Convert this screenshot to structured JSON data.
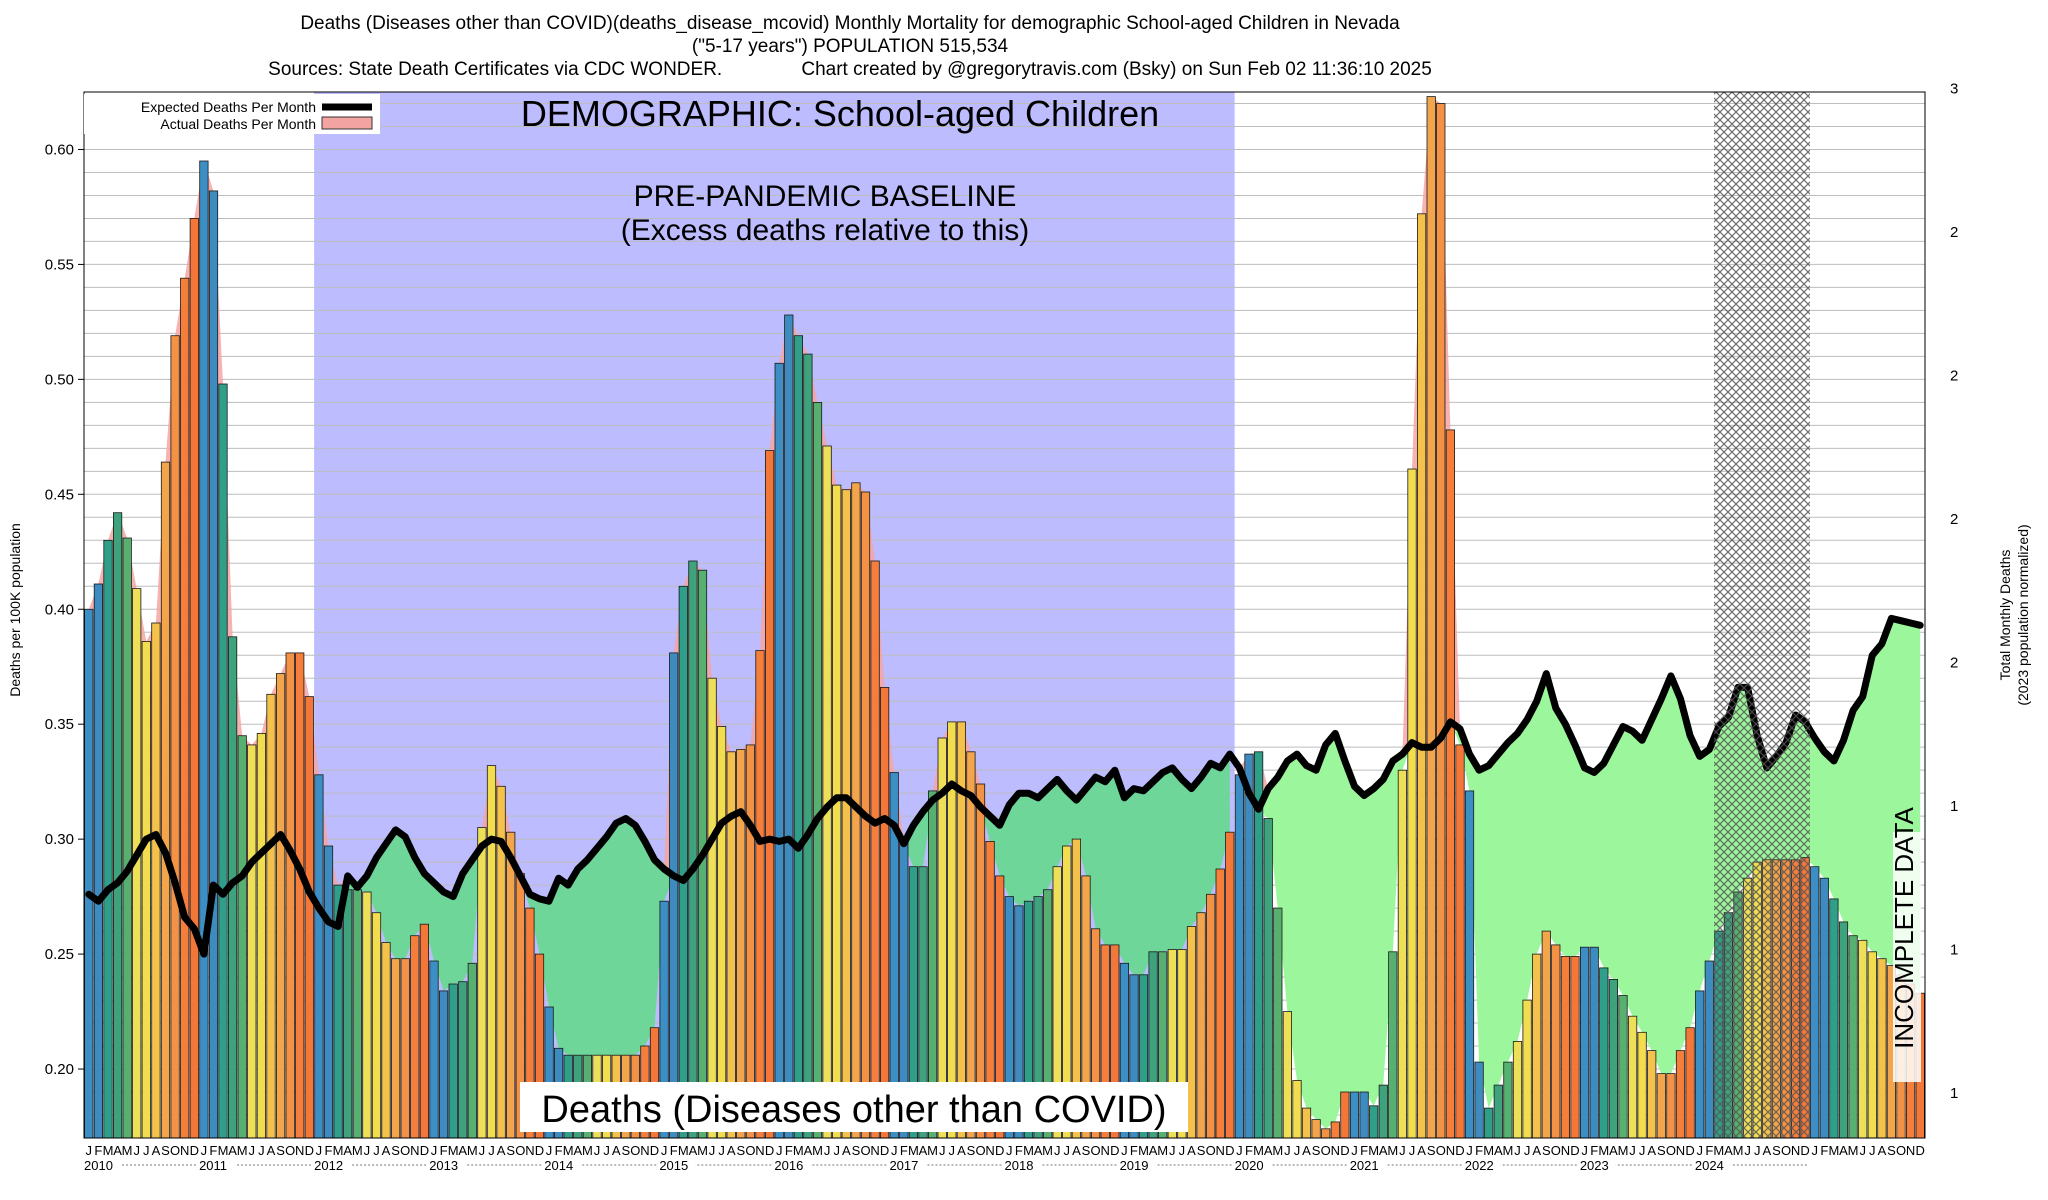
{
  "header": {
    "title_line1": "Deaths (Diseases other than COVID)(deaths_disease_mcovid) Monthly Mortality for demographic School-aged Children in Nevada",
    "title_line2": "(\"5-17 years\") POPULATION 515,534",
    "title_line3": "Sources: State Death Certificates via CDC WONDER.               Chart created by @gregorytravis.com (Bsky) on Sun Feb 02 11:36:10 2025"
  },
  "chart_data": {
    "type": "bar",
    "xlabel": "",
    "ylabel": "Deaths per 100K population",
    "ylabel_right": "Total Monthly Deaths",
    "ylabel_right_sub": "(2023 population normalized)",
    "ylim": [
      0.17,
      0.625
    ],
    "y_ticks": [
      0.2,
      0.25,
      0.3,
      0.35,
      0.4,
      0.45,
      0.5,
      0.55,
      0.6
    ],
    "y_tick_labels": [
      "0.20",
      "0.25",
      "0.30",
      "0.35",
      "0.40",
      "0.45",
      "0.50",
      "0.55",
      "0.60"
    ],
    "right_tick_labels": [
      "1",
      "1",
      "1",
      "2",
      "2",
      "2",
      "2",
      "3",
      "3"
    ],
    "month_letters": [
      "J",
      "F",
      "M",
      "A",
      "M",
      "J",
      "J",
      "A",
      "S",
      "O",
      "N",
      "D"
    ],
    "years": [
      "2010",
      "2011",
      "2012",
      "2013",
      "2014",
      "2015",
      "2016",
      "2017",
      "2018",
      "2019",
      "2020",
      "2021",
      "2022",
      "2023",
      "2024"
    ],
    "grid": "horizontal",
    "legend_position": "top-left",
    "legend": [
      {
        "name": "Expected Deaths Per Month",
        "color": "#000000"
      },
      {
        "name": "Actual Deaths Per Month",
        "color": "#f4a3a3"
      }
    ],
    "annotations": {
      "demographic": "DEMOGRAPHIC: School-aged Children",
      "baseline_line1": "PRE-PANDEMIC BASELINE",
      "baseline_line2": "(Excess deaths relative to this)",
      "bottom_label": "Deaths (Diseases other than COVID)",
      "incomplete": "INCOMPLETE DATA"
    },
    "baseline_period": {
      "start": "2012-01",
      "end": "2019-12"
    },
    "incomplete_period": {
      "start": "2024-03",
      "end": "2024-12"
    },
    "series": [
      {
        "name": "Actual Deaths Per Month",
        "start": "2010-01",
        "values": [
          0.4,
          0.411,
          0.43,
          0.442,
          0.431,
          0.409,
          0.386,
          0.394,
          0.464,
          0.519,
          0.544,
          0.57,
          0.595,
          0.582,
          0.498,
          0.388,
          0.345,
          0.341,
          0.346,
          0.363,
          0.372,
          0.381,
          0.381,
          0.362,
          0.328,
          0.297,
          0.28,
          0.278,
          0.278,
          0.277,
          0.268,
          0.255,
          0.248,
          0.248,
          0.258,
          0.263,
          0.247,
          0.234,
          0.237,
          0.238,
          0.246,
          0.305,
          0.332,
          0.323,
          0.303,
          0.285,
          0.27,
          0.25,
          0.227,
          0.209,
          0.206,
          0.206,
          0.206,
          0.206,
          0.206,
          0.206,
          0.206,
          0.206,
          0.21,
          0.218,
          0.273,
          0.381,
          0.41,
          0.421,
          0.417,
          0.37,
          0.349,
          0.338,
          0.339,
          0.341,
          0.382,
          0.469,
          0.507,
          0.528,
          0.519,
          0.511,
          0.49,
          0.471,
          0.454,
          0.452,
          0.455,
          0.451,
          0.421,
          0.366,
          0.329,
          0.3,
          0.288,
          0.288,
          0.321,
          0.344,
          0.351,
          0.351,
          0.338,
          0.324,
          0.299,
          0.284,
          0.275,
          0.271,
          0.273,
          0.275,
          0.278,
          0.288,
          0.297,
          0.3,
          0.284,
          0.261,
          0.254,
          0.254,
          0.246,
          0.241,
          0.241,
          0.251,
          0.251,
          0.252,
          0.252,
          0.262,
          0.268,
          0.276,
          0.287,
          0.303,
          0.328,
          0.337,
          0.338,
          0.309,
          0.27,
          0.225,
          0.195,
          0.183,
          0.178,
          0.174,
          0.177,
          0.19,
          0.19,
          0.19,
          0.184,
          0.193,
          0.251,
          0.33,
          0.461,
          0.572,
          0.623,
          0.62,
          0.478,
          0.341,
          0.321,
          0.203,
          0.183,
          0.193,
          0.203,
          0.212,
          0.23,
          0.25,
          0.26,
          0.254,
          0.249,
          0.249,
          0.253,
          0.253,
          0.244,
          0.239,
          0.232,
          0.223,
          0.216,
          0.208,
          0.198,
          0.198,
          0.208,
          0.218,
          0.234,
          0.247,
          0.26,
          0.268,
          0.277,
          0.283,
          0.29,
          0.291,
          0.291,
          0.291,
          0.291,
          0.292,
          0.288,
          0.283,
          0.274,
          0.264,
          0.258,
          0.256,
          0.251,
          0.248,
          0.245,
          0.241,
          0.237,
          0.233
        ]
      },
      {
        "name": "Expected Deaths Per Month",
        "start": "2010-01",
        "values": [
          0.276,
          0.273,
          0.278,
          0.281,
          0.286,
          0.293,
          0.3,
          0.302,
          0.294,
          0.281,
          0.266,
          0.261,
          0.25,
          0.28,
          0.276,
          0.281,
          0.284,
          0.29,
          0.294,
          0.298,
          0.302,
          0.295,
          0.287,
          0.277,
          0.27,
          0.264,
          0.262,
          0.284,
          0.279,
          0.284,
          0.292,
          0.298,
          0.304,
          0.301,
          0.292,
          0.285,
          0.281,
          0.277,
          0.275,
          0.285,
          0.291,
          0.297,
          0.3,
          0.299,
          0.292,
          0.284,
          0.276,
          0.274,
          0.273,
          0.283,
          0.28,
          0.287,
          0.291,
          0.296,
          0.301,
          0.307,
          0.309,
          0.306,
          0.299,
          0.291,
          0.287,
          0.284,
          0.282,
          0.287,
          0.293,
          0.3,
          0.307,
          0.31,
          0.312,
          0.306,
          0.299,
          0.3,
          0.299,
          0.3,
          0.296,
          0.302,
          0.309,
          0.314,
          0.318,
          0.318,
          0.314,
          0.31,
          0.307,
          0.309,
          0.306,
          0.298,
          0.306,
          0.312,
          0.317,
          0.32,
          0.324,
          0.321,
          0.319,
          0.314,
          0.31,
          0.306,
          0.315,
          0.32,
          0.32,
          0.318,
          0.322,
          0.326,
          0.321,
          0.317,
          0.322,
          0.327,
          0.325,
          0.33,
          0.318,
          0.322,
          0.321,
          0.325,
          0.329,
          0.331,
          0.326,
          0.322,
          0.327,
          0.333,
          0.331,
          0.337,
          0.331,
          0.32,
          0.313,
          0.322,
          0.327,
          0.334,
          0.337,
          0.332,
          0.33,
          0.341,
          0.346,
          0.334,
          0.323,
          0.319,
          0.322,
          0.326,
          0.334,
          0.337,
          0.342,
          0.34,
          0.34,
          0.344,
          0.351,
          0.348,
          0.337,
          0.33,
          0.332,
          0.337,
          0.342,
          0.346,
          0.352,
          0.36,
          0.372,
          0.357,
          0.35,
          0.341,
          0.331,
          0.329,
          0.333,
          0.341,
          0.349,
          0.347,
          0.343,
          0.352,
          0.361,
          0.371,
          0.361,
          0.345,
          0.336,
          0.339,
          0.349,
          0.353,
          0.366,
          0.366,
          0.345,
          0.331,
          0.336,
          0.342,
          0.354,
          0.351,
          0.344,
          0.338,
          0.334,
          0.343,
          0.356,
          0.362,
          0.38,
          0.385,
          0.396,
          0.395,
          0.394,
          0.393
        ]
      }
    ]
  }
}
